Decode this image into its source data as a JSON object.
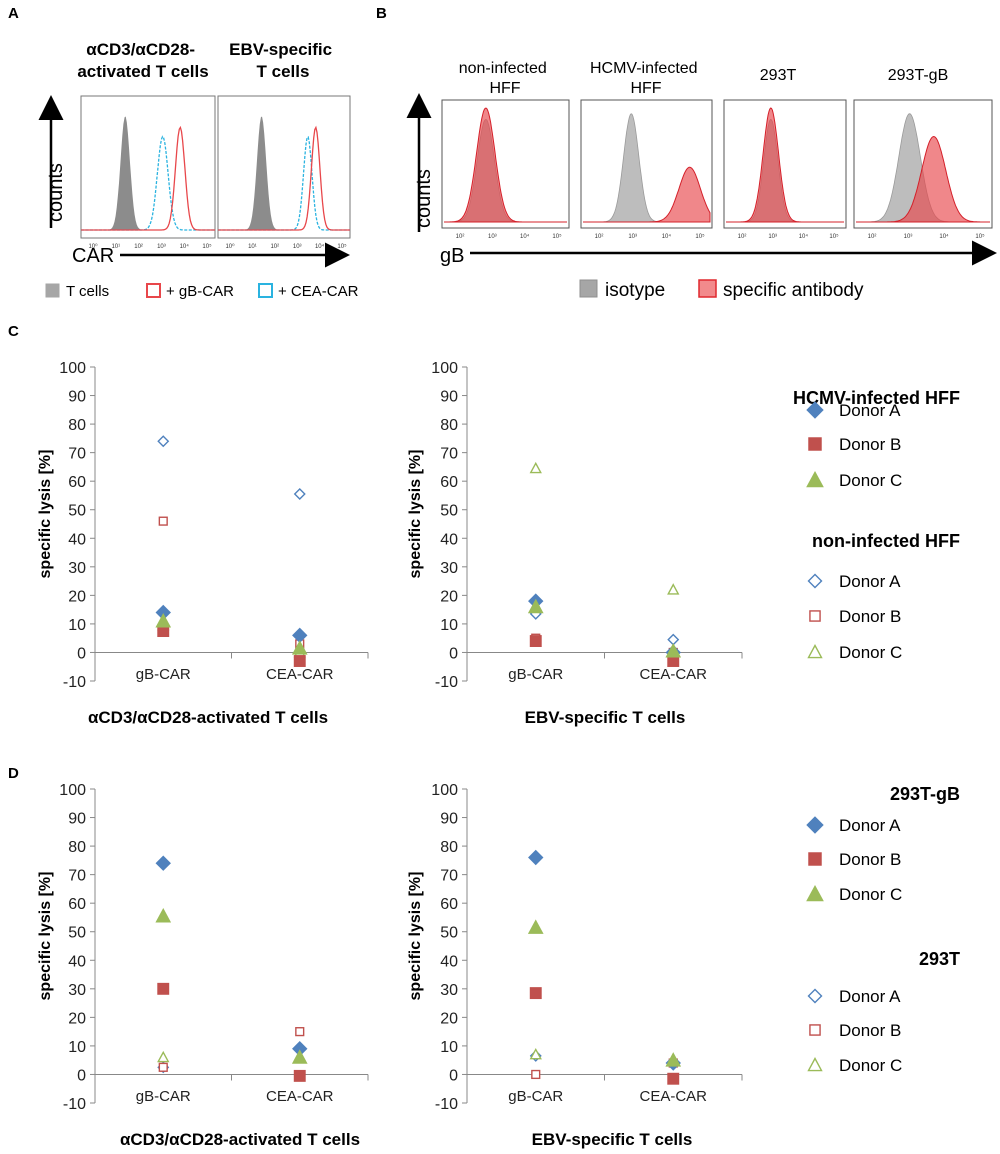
{
  "panels": {
    "a": "A",
    "b": "B",
    "c": "C",
    "d": "D"
  },
  "colors": {
    "donor_a": "#4f81bd",
    "donor_b": "#c0504d",
    "donor_c": "#9bbb59",
    "isotype": "#a6a6a6",
    "specific": "#e8474b",
    "gb_car": "#e8474b",
    "cea_car": "#2ab3e0"
  },
  "panel_a": {
    "headers": [
      "αCD3/αCD28-\nactivated T cells",
      "EBV-specific\nT cells"
    ],
    "y_axis_label": "counts",
    "x_axis_label": "CAR",
    "legend": {
      "t_cells": "T cells",
      "gb_car": "+ gB-CAR",
      "cea_car": "+ CEA-CAR"
    },
    "tick_labels": [
      "10⁰",
      "10¹",
      "10²",
      "10³",
      "10⁴",
      "10⁵"
    ]
  },
  "panel_b": {
    "headers": [
      "non-infected\nHFF",
      "HCMV-infected\nHFF",
      "293T",
      "293T-gB"
    ],
    "y_axis_label": "counts",
    "x_axis_label": "gB",
    "legend": {
      "isotype": "isotype",
      "specific": "specific antibody"
    },
    "tick_labels": [
      "10²",
      "10³",
      "10⁴",
      "10⁵"
    ]
  },
  "chart_data": [
    {
      "id": "C-left",
      "type": "scatter",
      "categories": [
        "gB-CAR",
        "CEA-CAR"
      ],
      "xlabel": "αCD3/αCD28-activated T cells",
      "ylabel": "specific lysis [%]",
      "ylim": [
        -10,
        100
      ],
      "yticks": [
        -10,
        0,
        10,
        20,
        30,
        40,
        50,
        60,
        70,
        80,
        90,
        100
      ],
      "series": [
        {
          "name": "HCMV-infected HFF Donor A",
          "marker": "diamond",
          "filled": true,
          "color": "#4f81bd",
          "values": [
            14,
            6
          ]
        },
        {
          "name": "HCMV-infected HFF Donor B",
          "marker": "square",
          "filled": true,
          "color": "#c0504d",
          "values": [
            7.5,
            -3
          ]
        },
        {
          "name": "HCMV-infected HFF Donor C",
          "marker": "triangle",
          "filled": true,
          "color": "#9bbb59",
          "values": [
            11,
            1.5
          ]
        },
        {
          "name": "non-infected HFF Donor A",
          "marker": "diamond",
          "filled": false,
          "color": "#4f81bd",
          "values": [
            74,
            55.5
          ]
        },
        {
          "name": "non-infected HFF Donor B",
          "marker": "square",
          "filled": false,
          "color": "#c0504d",
          "values": [
            46,
            3
          ]
        },
        {
          "name": "non-infected HFF Donor C",
          "marker": "triangle",
          "filled": false,
          "color": "#9bbb59",
          "values": [
            9.5,
            0
          ]
        }
      ]
    },
    {
      "id": "C-right",
      "type": "scatter",
      "categories": [
        "gB-CAR",
        "CEA-CAR"
      ],
      "xlabel": "EBV-specific T cells",
      "ylabel": "specific lysis [%]",
      "ylim": [
        -10,
        100
      ],
      "yticks": [
        -10,
        0,
        10,
        20,
        30,
        40,
        50,
        60,
        70,
        80,
        90,
        100
      ],
      "series": [
        {
          "name": "HCMV-infected HFF Donor A",
          "marker": "diamond",
          "filled": true,
          "color": "#4f81bd",
          "values": [
            18,
            0
          ]
        },
        {
          "name": "HCMV-infected HFF Donor B",
          "marker": "square",
          "filled": true,
          "color": "#c0504d",
          "values": [
            4,
            -3
          ]
        },
        {
          "name": "HCMV-infected HFF Donor C",
          "marker": "triangle",
          "filled": true,
          "color": "#9bbb59",
          "values": [
            16,
            0.5
          ]
        },
        {
          "name": "non-infected HFF Donor A",
          "marker": "diamond",
          "filled": false,
          "color": "#4f81bd",
          "values": [
            13.5,
            4.5
          ]
        },
        {
          "name": "non-infected HFF Donor B",
          "marker": "square",
          "filled": false,
          "color": "#c0504d",
          "values": [
            5,
            0
          ]
        },
        {
          "name": "non-infected HFF Donor C",
          "marker": "triangle",
          "filled": false,
          "color": "#9bbb59",
          "values": [
            64.5,
            22
          ]
        }
      ]
    },
    {
      "id": "D-left",
      "type": "scatter",
      "categories": [
        "gB-CAR",
        "CEA-CAR"
      ],
      "xlabel": "αCD3/αCD28-activated T cells",
      "ylabel": "specific lysis [%]",
      "ylim": [
        -10,
        100
      ],
      "yticks": [
        -10,
        0,
        10,
        20,
        30,
        40,
        50,
        60,
        70,
        80,
        90,
        100
      ],
      "series": [
        {
          "name": "293T-gB Donor A",
          "marker": "diamond",
          "filled": true,
          "color": "#4f81bd",
          "values": [
            74,
            9
          ]
        },
        {
          "name": "293T-gB Donor B",
          "marker": "square",
          "filled": true,
          "color": "#c0504d",
          "values": [
            30,
            -0.5
          ]
        },
        {
          "name": "293T-gB Donor C",
          "marker": "triangle",
          "filled": true,
          "color": "#9bbb59",
          "values": [
            55.5,
            6
          ]
        },
        {
          "name": "293T Donor A",
          "marker": "diamond",
          "filled": false,
          "color": "#4f81bd",
          "values": [
            2.5,
            9
          ]
        },
        {
          "name": "293T Donor B",
          "marker": "square",
          "filled": false,
          "color": "#c0504d",
          "values": [
            2.5,
            15
          ]
        },
        {
          "name": "293T Donor C",
          "marker": "triangle",
          "filled": false,
          "color": "#9bbb59",
          "values": [
            6,
            6.5
          ]
        }
      ]
    },
    {
      "id": "D-right",
      "type": "scatter",
      "categories": [
        "gB-CAR",
        "CEA-CAR"
      ],
      "xlabel": "EBV-specific T cells",
      "ylabel": "specific lysis [%]",
      "ylim": [
        -10,
        100
      ],
      "yticks": [
        -10,
        0,
        10,
        20,
        30,
        40,
        50,
        60,
        70,
        80,
        90,
        100
      ],
      "series": [
        {
          "name": "293T-gB Donor A",
          "marker": "diamond",
          "filled": true,
          "color": "#4f81bd",
          "values": [
            76,
            4
          ]
        },
        {
          "name": "293T-gB Donor B",
          "marker": "square",
          "filled": true,
          "color": "#c0504d",
          "values": [
            28.5,
            -1.5
          ]
        },
        {
          "name": "293T-gB Donor C",
          "marker": "triangle",
          "filled": true,
          "color": "#9bbb59",
          "values": [
            51.5,
            5
          ]
        },
        {
          "name": "293T Donor A",
          "marker": "diamond",
          "filled": false,
          "color": "#4f81bd",
          "values": [
            6.5,
            4
          ]
        },
        {
          "name": "293T Donor B",
          "marker": "square",
          "filled": false,
          "color": "#c0504d",
          "values": [
            0,
            4
          ]
        },
        {
          "name": "293T Donor C",
          "marker": "triangle",
          "filled": false,
          "color": "#9bbb59",
          "values": [
            7,
            4.5
          ]
        }
      ]
    }
  ],
  "legend_c": {
    "group1_title": "HCMV-infected HFF",
    "group2_title": "non-infected HFF",
    "donors": [
      "Donor A",
      "Donor B",
      "Donor C"
    ]
  },
  "legend_d": {
    "group1_title": "293T-gB",
    "group2_title": "293T",
    "donors": [
      "Donor A",
      "Donor B",
      "Donor C"
    ]
  }
}
